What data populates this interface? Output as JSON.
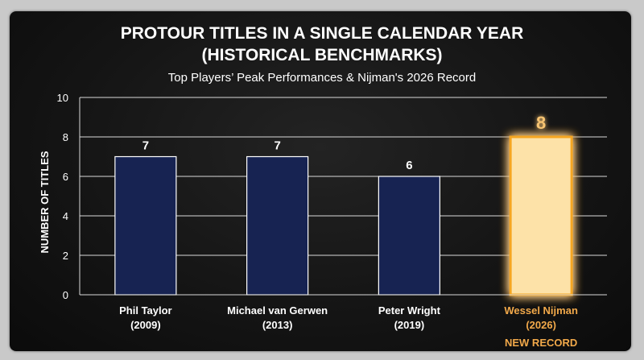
{
  "chart_data": {
    "type": "bar",
    "title_line1": "PROTOUR TITLES IN A SINGLE CALENDAR YEAR",
    "title_line2": "(HISTORICAL BENCHMARKS)",
    "subtitle": "Top Players’ Peak Performances & Nijman's 2026 Record",
    "ylabel": "NUMBER OF TITLES",
    "xlabel": "",
    "ylim": [
      0,
      10
    ],
    "yticks": [
      0,
      2,
      4,
      6,
      8,
      10
    ],
    "grid": true,
    "legend": "none",
    "categories": [
      [
        "Phil Taylor",
        "(2009)"
      ],
      [
        "Michael van Gerwen",
        "(2013)"
      ],
      [
        "Peter Wright",
        "(2019)"
      ],
      [
        "Wessel Nijman",
        "(2026)"
      ]
    ],
    "values": [
      7,
      7,
      6,
      8
    ],
    "highlight_index": 3,
    "highlight_note": "NEW RECORD",
    "colors": {
      "bar": "#172352",
      "bar_stroke": "#ffffff",
      "highlight_bar": "#fde2a8",
      "highlight_glow": "#f5a623",
      "highlight_text": "#f2a94a",
      "grid": "#d9d9d9"
    }
  }
}
